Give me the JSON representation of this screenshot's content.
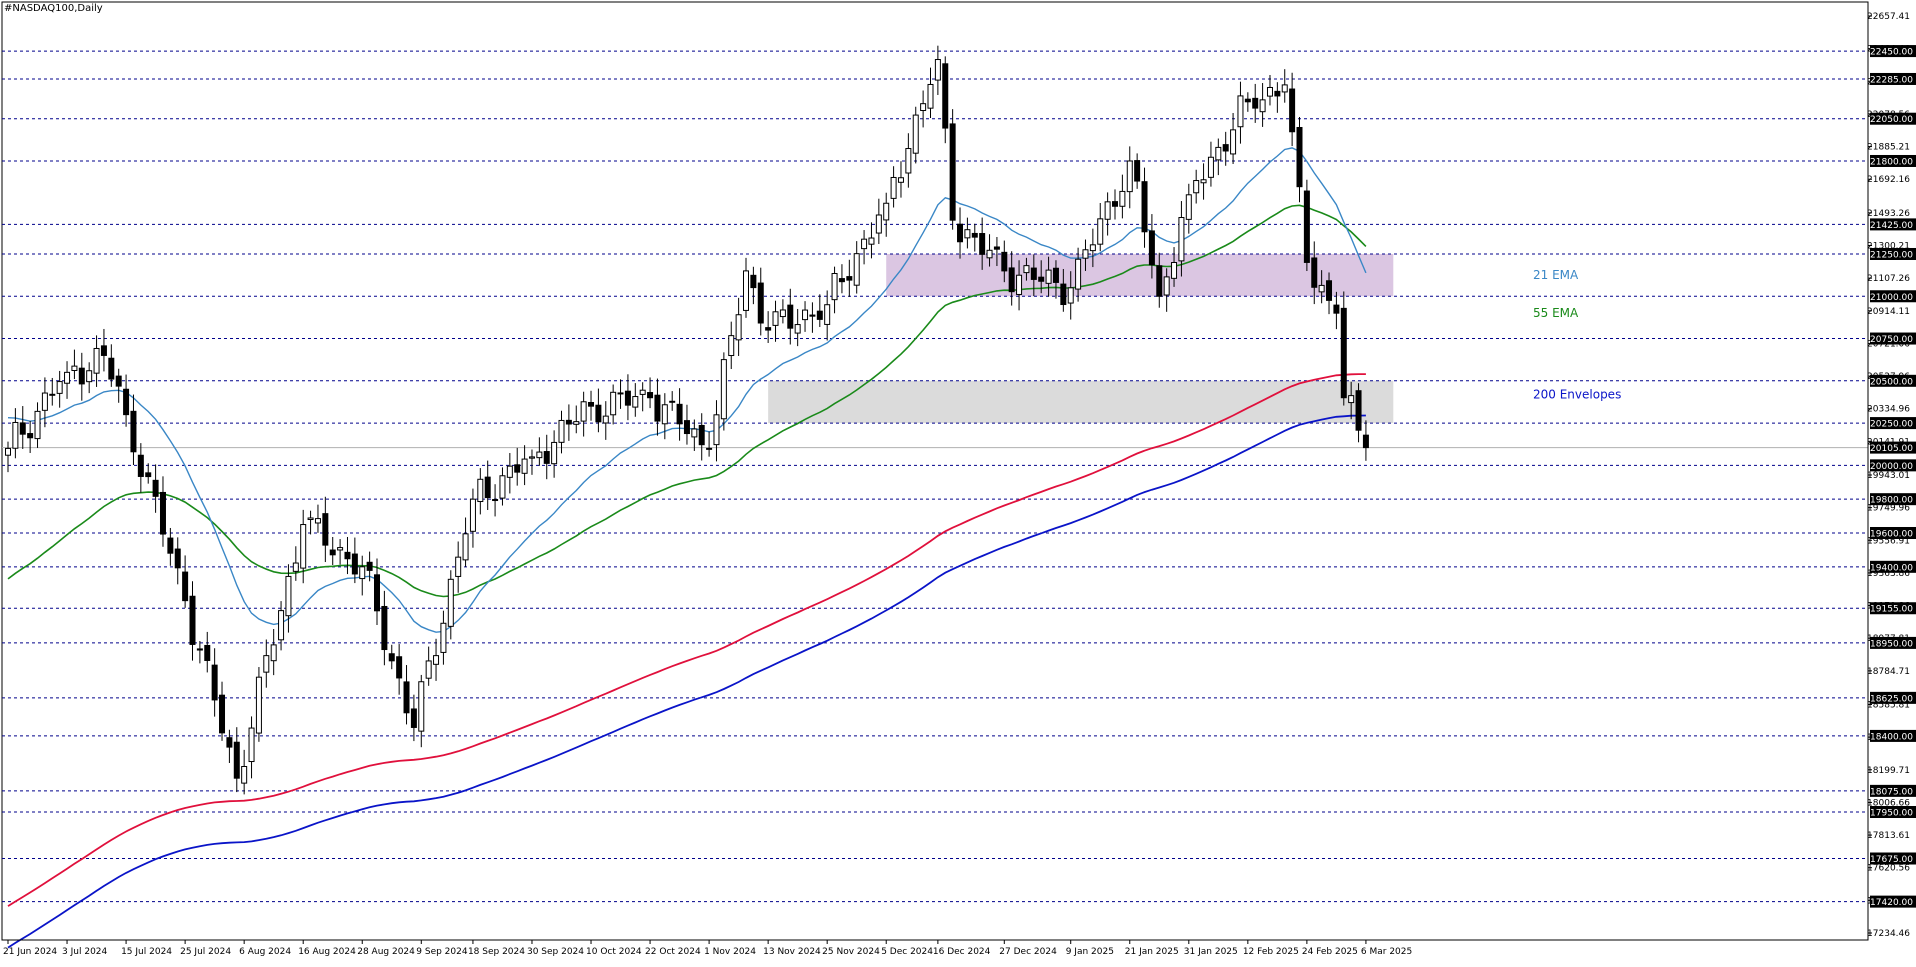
{
  "symbol_title": "#NASDAQ100,Daily",
  "colors": {
    "background": "#ffffff",
    "grid_line": "#00008b",
    "bull_candle": "#ffffff",
    "bear_candle": "#000000",
    "ema21": "#3a87c6",
    "ema55": "#1a8a1a",
    "envelope_upper": "#e0103c",
    "envelope_lower": "#0a14c8",
    "resistance_zone": "#d9c3e0",
    "support_zone": "#d9d9d9",
    "price_label_bg": "#000000",
    "price_label_text": "#ffffff",
    "current_price_line": "#b0b0b0"
  },
  "chart_data": {
    "type": "candlestick",
    "title": "#NASDAQ100,Daily",
    "ylim": [
      17234.46,
      22657.41
    ],
    "y_tick_labels": [
      22657.41,
      22464.46,
      22271.51,
      22078.56,
      21885.21,
      21692.16,
      21493.26,
      21300.21,
      21107.26,
      20914.11,
      20721.06,
      20527.96,
      20334.96,
      20141.91,
      19943.01,
      19749.96,
      19556.91,
      19363.86,
      19170.86,
      18977.81,
      18784.71,
      18585.81,
      18392.76,
      18199.71,
      18006.66,
      17813.61,
      17620.56,
      17427.51,
      17234.46
    ],
    "horizontal_levels": [
      22450,
      22285,
      22050,
      21800,
      21425,
      21250,
      21000,
      20750,
      20500,
      20250,
      20000,
      19800,
      19600,
      19400,
      19155,
      18950,
      18625,
      18400,
      18075,
      17950,
      17675,
      17420
    ],
    "current_price": 20105.0,
    "x_tick_labels": [
      "21 Jun 2024",
      "3 Jul 2024",
      "15 Jul 2024",
      "25 Jul 2024",
      "6 Aug 2024",
      "16 Aug 2024",
      "28 Aug 2024",
      "9 Sep 2024",
      "18 Sep 2024",
      "30 Sep 2024",
      "10 Oct 2024",
      "22 Oct 2024",
      "1 Nov 2024",
      "13 Nov 2024",
      "25 Nov 2024",
      "5 Dec 2024",
      "16 Dec 2024",
      "27 Dec 2024",
      "9 Jan 2025",
      "21 Jan 2025",
      "31 Jan 2025",
      "12 Feb 2025",
      "24 Feb 2025",
      "6 Mar 2025"
    ],
    "zones": [
      {
        "label": "21 EMA",
        "from": 21000,
        "to": 21250,
        "start": "5 Dec 2024",
        "end": "7 Mar 2025"
      },
      {
        "label": "200 Envelopes",
        "from": 20250,
        "to": 20500,
        "start": "13 Nov 2024",
        "end": "7 Mar 2025"
      }
    ],
    "zone_text": [
      {
        "text": "21 EMA",
        "kind": "ema21"
      },
      {
        "text": "55 EMA",
        "kind": "ema55"
      },
      {
        "text": "200 Envelopes",
        "kind": "envelope"
      }
    ],
    "ohlc_key_points": [
      {
        "date": "21 Jun 2024",
        "close": 20100
      },
      {
        "date": "3 Jul 2024",
        "close": 20550
      },
      {
        "date": "10 Jul 2024",
        "close": 20650
      },
      {
        "date": "15 Jul 2024",
        "close": 20300
      },
      {
        "date": "25 Jul 2024",
        "close": 19200
      },
      {
        "date": "5 Aug 2024",
        "close": 18150
      },
      {
        "date": "16 Aug 2024",
        "close": 19650
      },
      {
        "date": "28 Aug 2024",
        "close": 19400
      },
      {
        "date": "6 Sep 2024",
        "close": 18450
      },
      {
        "date": "18 Sep 2024",
        "close": 19800
      },
      {
        "date": "30 Sep 2024",
        "close": 20050
      },
      {
        "date": "10 Oct 2024",
        "close": 20350
      },
      {
        "date": "22 Oct 2024",
        "close": 20400
      },
      {
        "date": "1 Nov 2024",
        "close": 20100
      },
      {
        "date": "8 Nov 2024",
        "close": 21150
      },
      {
        "date": "13 Nov 2024",
        "close": 20800
      },
      {
        "date": "25 Nov 2024",
        "close": 20950
      },
      {
        "date": "5 Dec 2024",
        "close": 21550
      },
      {
        "date": "16 Dec 2024",
        "close": 22400
      },
      {
        "date": "18 Dec 2024",
        "close": 21450
      },
      {
        "date": "27 Dec 2024",
        "close": 21150
      },
      {
        "date": "9 Jan 2025",
        "close": 21050
      },
      {
        "date": "21 Jan 2025",
        "close": 21800
      },
      {
        "date": "27 Jan 2025",
        "close": 21000
      },
      {
        "date": "31 Jan 2025",
        "close": 21600
      },
      {
        "date": "12 Feb 2025",
        "close": 22150
      },
      {
        "date": "19 Feb 2025",
        "close": 22250
      },
      {
        "date": "24 Feb 2025",
        "close": 21200
      },
      {
        "date": "28 Feb 2025",
        "close": 20900
      },
      {
        "date": "3 Mar 2025",
        "close": 20400
      },
      {
        "date": "6 Mar 2025",
        "close": 20105
      }
    ],
    "series": [
      {
        "name": "21 EMA",
        "color_key": "ema21"
      },
      {
        "name": "55 EMA",
        "color_key": "ema55"
      },
      {
        "name": "200 Envelopes",
        "color_key": "envelope_upper"
      }
    ],
    "grid": true
  }
}
